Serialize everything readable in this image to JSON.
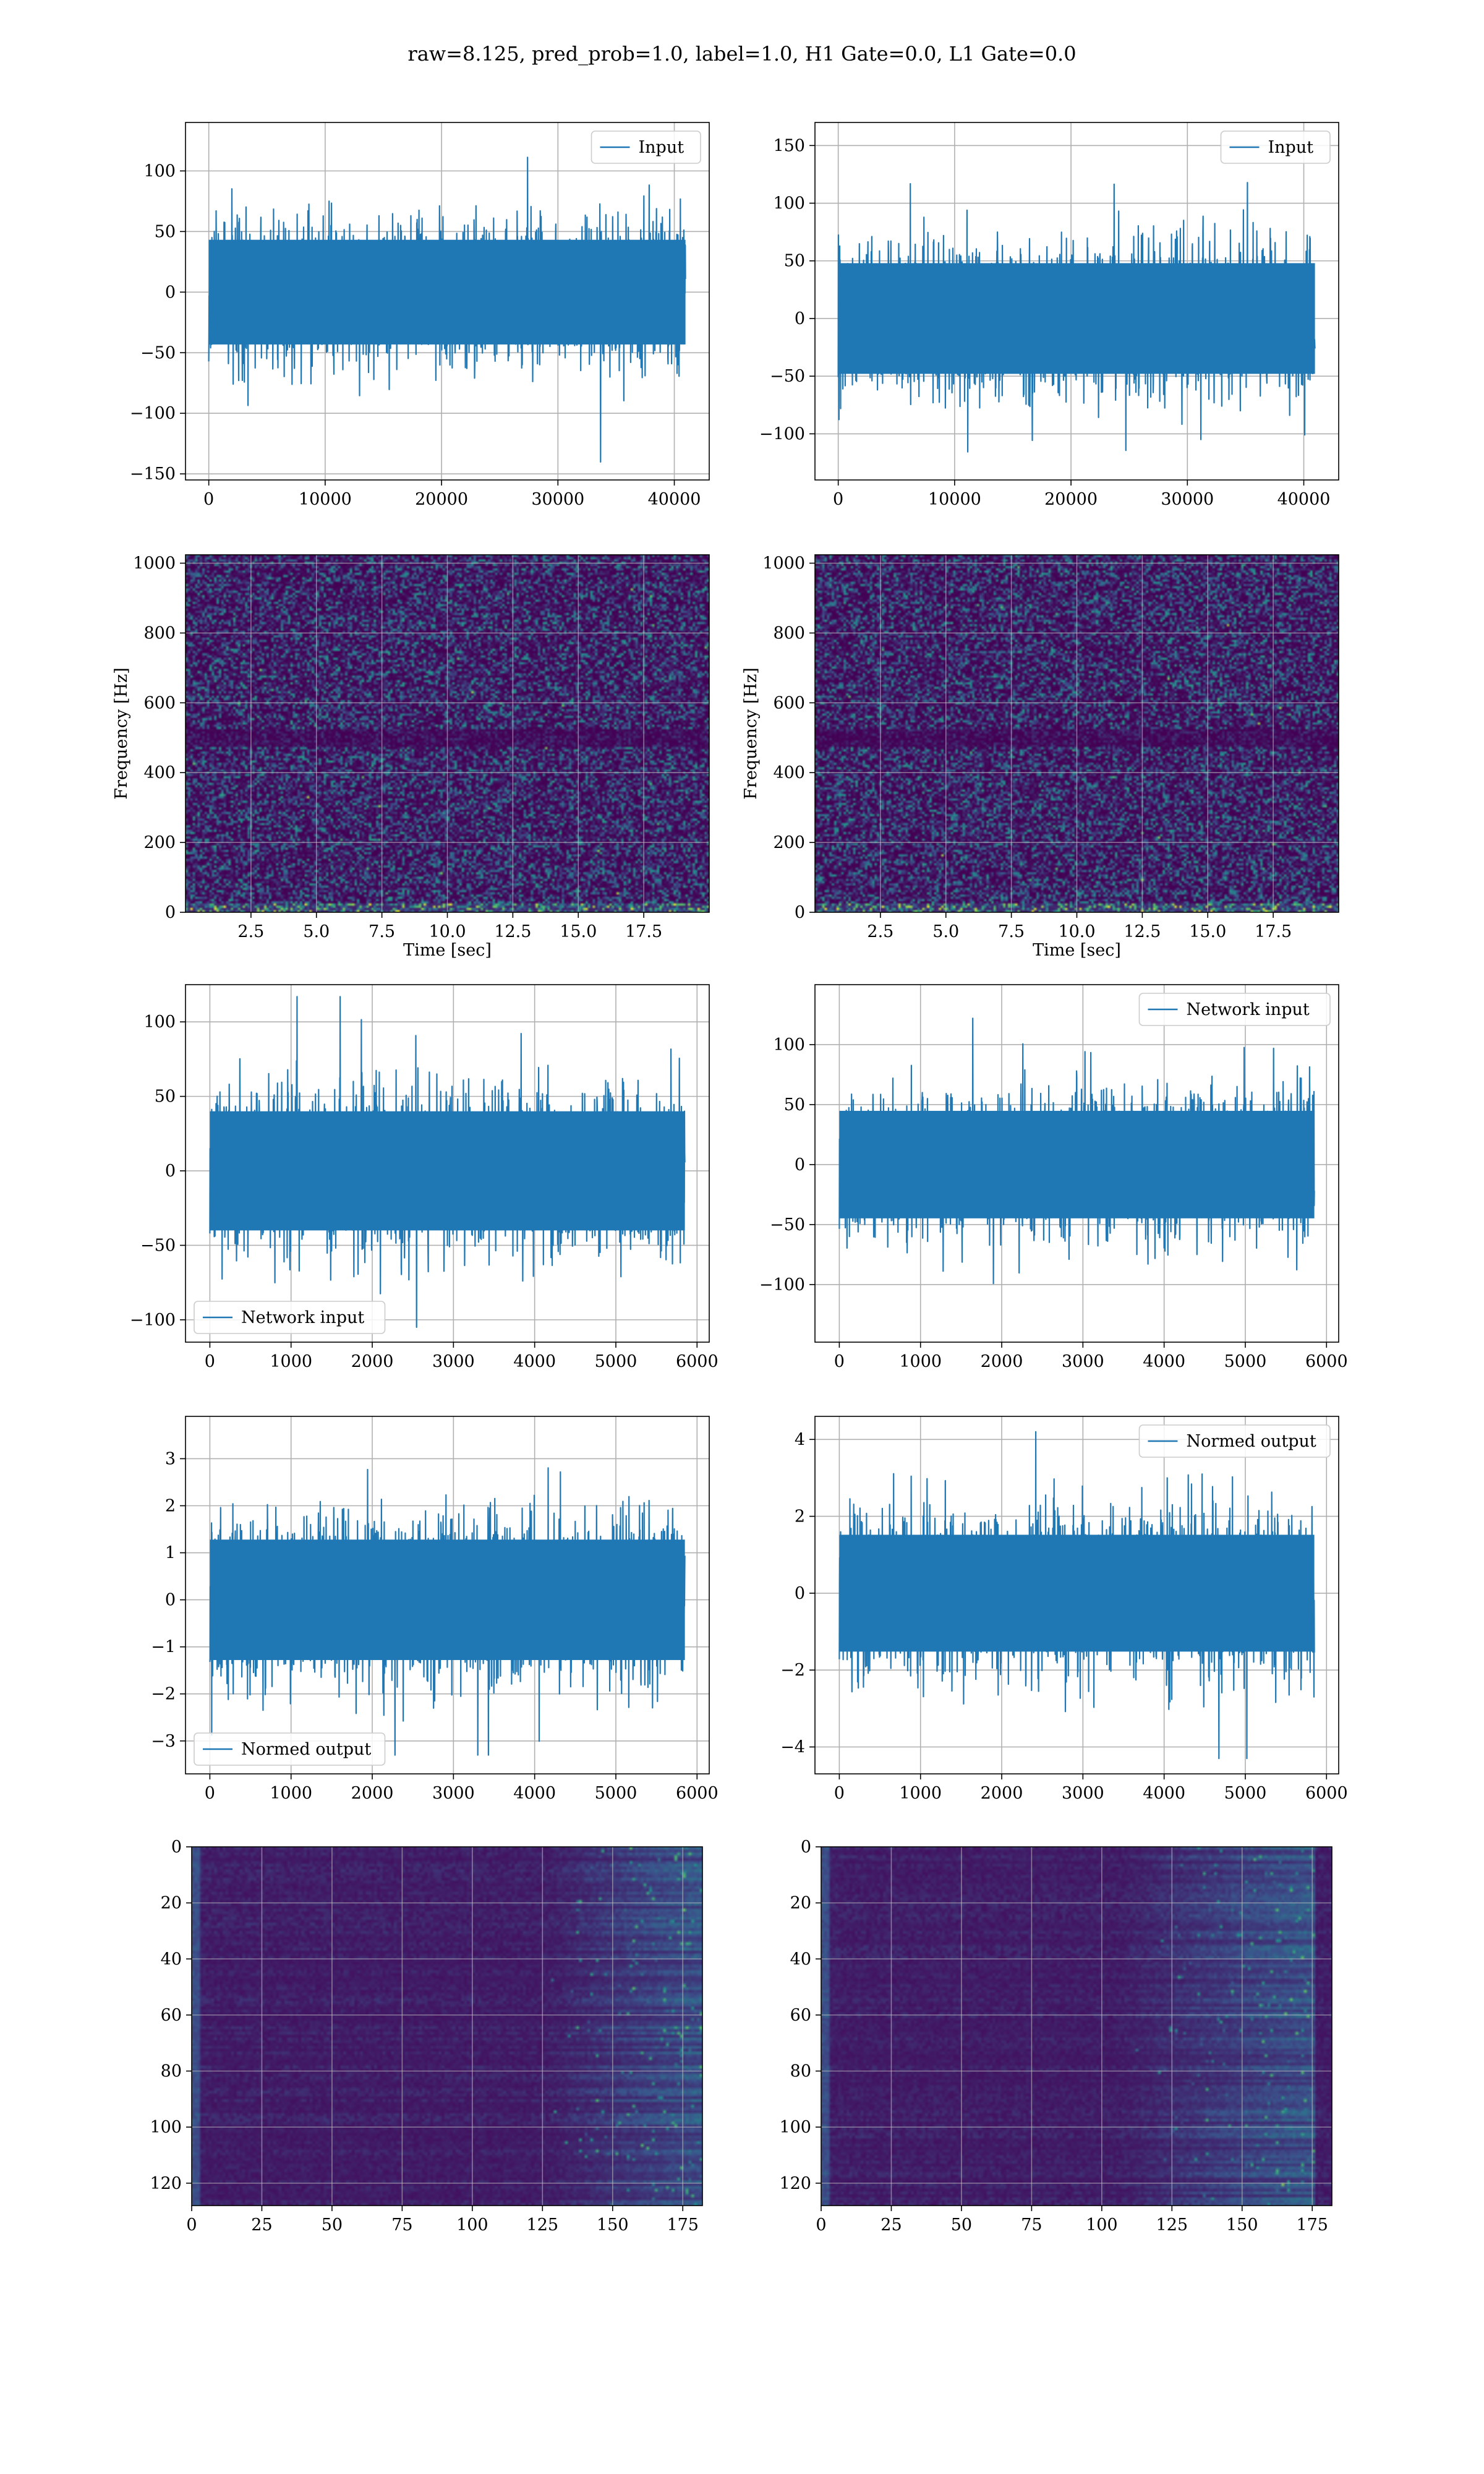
{
  "title": "raw=8.125, pred_prob=1.0, label=1.0, H1 Gate=0.0, L1 Gate=0.0",
  "colors": {
    "series": "#1f77b4",
    "grid": "#b0b0b0",
    "viridis_low": "#440154",
    "viridis_high": "#fde725"
  },
  "chart_data": [
    {
      "id": "h1-input",
      "type": "line",
      "series": [
        {
          "name": "Input"
        }
      ],
      "legend": "upper right",
      "grid": true,
      "xlim": [
        -2000,
        43000
      ],
      "ylim": [
        -155,
        140
      ],
      "xticks": [
        0,
        10000,
        20000,
        30000,
        40000
      ],
      "yticks": [
        -150,
        -100,
        -50,
        0,
        50,
        100
      ],
      "n_samples": 40960,
      "amplitude_std": 27,
      "peak_range": [
        -143,
        131
      ]
    },
    {
      "id": "l1-input",
      "type": "line",
      "series": [
        {
          "name": "Input"
        }
      ],
      "legend": "upper right",
      "grid": true,
      "xlim": [
        -2000,
        43000
      ],
      "ylim": [
        -140,
        170
      ],
      "xticks": [
        0,
        10000,
        20000,
        30000,
        40000
      ],
      "yticks": [
        -100,
        -50,
        0,
        50,
        100,
        150
      ],
      "n_samples": 40960,
      "amplitude_std": 30,
      "peak_range": [
        -127,
        155
      ]
    },
    {
      "id": "h1-spectrogram",
      "type": "heatmap",
      "grid": true,
      "xlabel": "Time [sec]",
      "ylabel": "Frequency [Hz]",
      "xlim": [
        0,
        20
      ],
      "ylim": [
        0,
        1024
      ],
      "xticks": [
        2.5,
        5.0,
        7.5,
        10.0,
        12.5,
        15.0,
        17.5
      ],
      "yticks": [
        0,
        200,
        400,
        600,
        800,
        1000
      ],
      "colormap": "viridis"
    },
    {
      "id": "l1-spectrogram",
      "type": "heatmap",
      "grid": true,
      "xlabel": "Time [sec]",
      "ylabel": "Frequency [Hz]",
      "xlim": [
        0,
        20
      ],
      "ylim": [
        0,
        1024
      ],
      "xticks": [
        2.5,
        5.0,
        7.5,
        10.0,
        12.5,
        15.0,
        17.5
      ],
      "yticks": [
        0,
        200,
        400,
        600,
        800,
        1000
      ],
      "colormap": "viridis"
    },
    {
      "id": "h1-network-input",
      "type": "line",
      "series": [
        {
          "name": "Network input"
        }
      ],
      "legend": "lower left",
      "grid": true,
      "xlim": [
        -300,
        6150
      ],
      "ylim": [
        -115,
        125
      ],
      "xticks": [
        0,
        1000,
        2000,
        3000,
        4000,
        5000,
        6000
      ],
      "yticks": [
        -100,
        -50,
        0,
        50,
        100
      ],
      "n_samples": 5850,
      "amplitude_std": 25,
      "peak_range": [
        -105,
        117
      ]
    },
    {
      "id": "l1-network-input",
      "type": "line",
      "series": [
        {
          "name": "Network input"
        }
      ],
      "legend": "upper right",
      "grid": true,
      "xlim": [
        -300,
        6150
      ],
      "ylim": [
        -148,
        150
      ],
      "xticks": [
        0,
        1000,
        2000,
        3000,
        4000,
        5000,
        6000
      ],
      "yticks": [
        -100,
        -50,
        0,
        50,
        100
      ],
      "n_samples": 5850,
      "amplitude_std": 28,
      "peak_range": [
        -134,
        122
      ]
    },
    {
      "id": "h1-normed-output",
      "type": "line",
      "series": [
        {
          "name": "Normed output"
        }
      ],
      "legend": "lower left",
      "grid": true,
      "xlim": [
        -300,
        6150
      ],
      "ylim": [
        -3.7,
        3.9
      ],
      "xticks": [
        0,
        1000,
        2000,
        3000,
        4000,
        5000,
        6000
      ],
      "yticks": [
        -3,
        -2,
        -1,
        0,
        1,
        2,
        3
      ],
      "n_samples": 5850,
      "amplitude_std": 0.8,
      "peak_range": [
        -3.3,
        3.6
      ]
    },
    {
      "id": "l1-normed-output",
      "type": "line",
      "series": [
        {
          "name": "Normed output"
        }
      ],
      "legend": "upper right",
      "grid": true,
      "xlim": [
        -300,
        6150
      ],
      "ylim": [
        -4.7,
        4.6
      ],
      "xticks": [
        0,
        1000,
        2000,
        3000,
        4000,
        5000,
        6000
      ],
      "yticks": [
        -4,
        -2,
        0,
        2,
        4
      ],
      "n_samples": 5850,
      "amplitude_std": 0.95,
      "peak_range": [
        -4.3,
        4.2
      ]
    },
    {
      "id": "h1-feature-map",
      "type": "heatmap",
      "grid": true,
      "xlim": [
        0,
        182
      ],
      "ylim": [
        128,
        0
      ],
      "xticks": [
        0,
        25,
        50,
        75,
        100,
        125,
        150,
        175
      ],
      "yticks": [
        0,
        20,
        40,
        60,
        80,
        100,
        120
      ],
      "colormap": "viridis",
      "rows": 128,
      "cols": 182,
      "bright_columns": [
        125,
        182
      ]
    },
    {
      "id": "l1-feature-map",
      "type": "heatmap",
      "grid": true,
      "xlim": [
        0,
        182
      ],
      "ylim": [
        128,
        0
      ],
      "xticks": [
        0,
        25,
        50,
        75,
        100,
        125,
        150,
        175
      ],
      "yticks": [
        0,
        20,
        40,
        60,
        80,
        100,
        120
      ],
      "colormap": "viridis",
      "rows": 128,
      "cols": 182,
      "bright_columns": [
        105,
        175
      ]
    }
  ]
}
